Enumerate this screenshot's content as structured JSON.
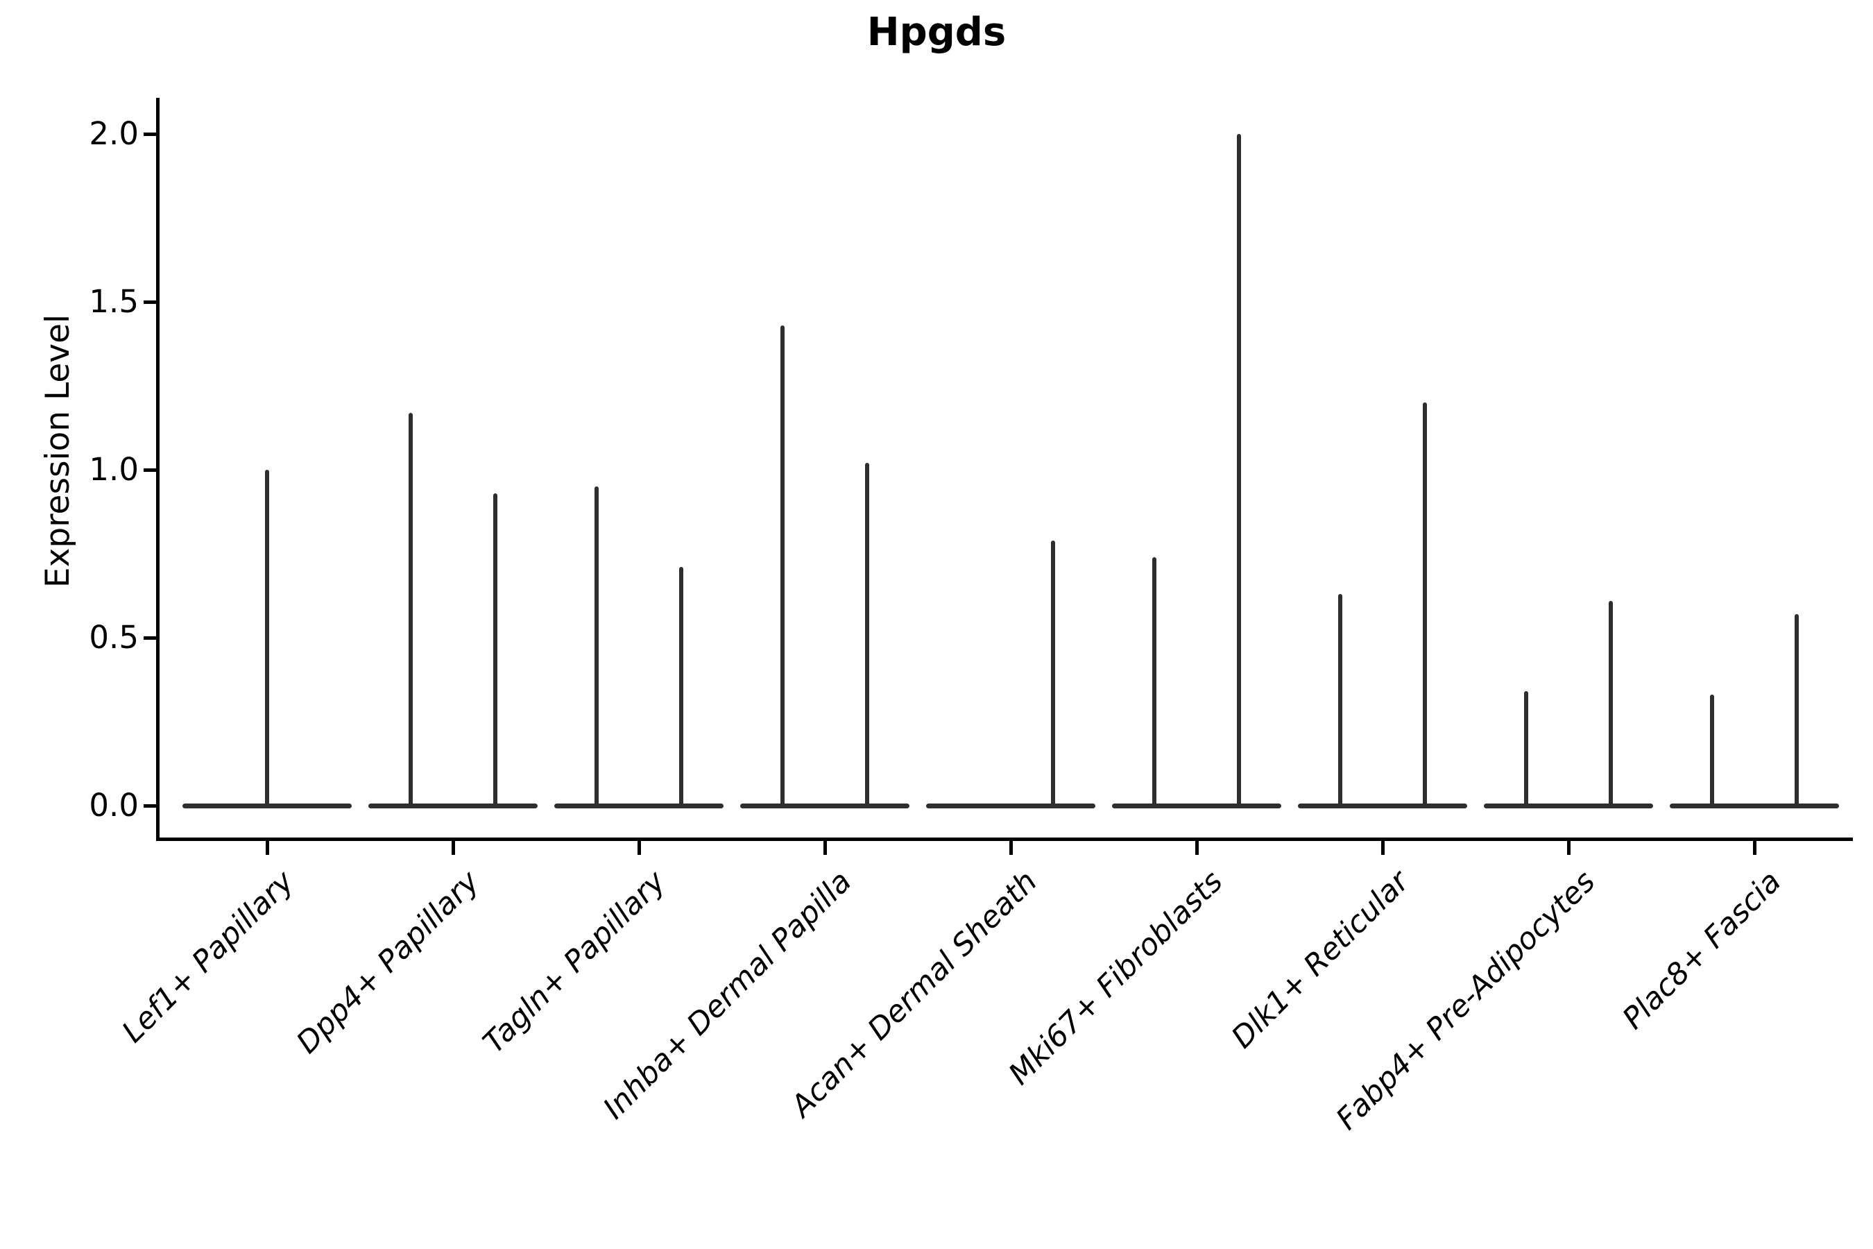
{
  "figure": {
    "background": "#ffffff"
  },
  "chart_data": {
    "type": "violin",
    "title": "Hpgds",
    "xlabel": "",
    "ylabel": "Expression Level",
    "ytick_labels": [
      "0.0",
      "0.5",
      "1.0",
      "1.5",
      "2.0"
    ],
    "ytick_values": [
      0.0,
      0.5,
      1.0,
      1.5,
      2.0
    ],
    "ylim": [
      -0.1,
      2.11
    ],
    "grid": false,
    "legend_position": "none",
    "categories": [
      "Lef1+ Papillary",
      "Dpp4+ Papillary",
      "Tagln+ Papillary",
      "Inhba+ Dermal Papilla",
      "Acan+ Dermal Sheath",
      "Mki67+ Fibroblasts",
      "Dlk1+ Reticular",
      "Fabp4+ Pre-Adipocytes",
      "Plac8+ Fascia"
    ],
    "violins": [
      {
        "category": "Lef1+ Papillary",
        "spikes": [
          {
            "side": "center",
            "height": 1.0
          }
        ]
      },
      {
        "category": "Dpp4+ Papillary",
        "spikes": [
          {
            "side": "left",
            "height": 1.17
          },
          {
            "side": "right",
            "height": 0.93
          }
        ]
      },
      {
        "category": "Tagln+ Papillary",
        "spikes": [
          {
            "side": "left",
            "height": 0.95
          },
          {
            "side": "right",
            "height": 0.71
          }
        ]
      },
      {
        "category": "Inhba+ Dermal Papilla",
        "spikes": [
          {
            "side": "left",
            "height": 1.43
          },
          {
            "side": "right",
            "height": 1.02
          }
        ]
      },
      {
        "category": "Acan+ Dermal Sheath",
        "spikes": [
          {
            "side": "right",
            "height": 0.79
          }
        ]
      },
      {
        "category": "Mki67+ Fibroblasts",
        "spikes": [
          {
            "side": "left",
            "height": 0.74
          },
          {
            "side": "right",
            "height": 2.0
          }
        ]
      },
      {
        "category": "Dlk1+ Reticular",
        "spikes": [
          {
            "side": "left",
            "height": 0.63
          },
          {
            "side": "right",
            "height": 1.2
          }
        ]
      },
      {
        "category": "Fabp4+ Pre-Adipocytes",
        "spikes": [
          {
            "side": "left",
            "height": 0.34
          },
          {
            "side": "right",
            "height": 0.61
          }
        ]
      },
      {
        "category": "Plac8+ Fascia",
        "spikes": [
          {
            "side": "left",
            "height": 0.33
          },
          {
            "side": "right",
            "height": 0.57
          }
        ]
      }
    ],
    "colors": {
      "violin": "#2e2e2e",
      "axis": "#000000",
      "text": "#000000",
      "background": "#ffffff"
    }
  }
}
